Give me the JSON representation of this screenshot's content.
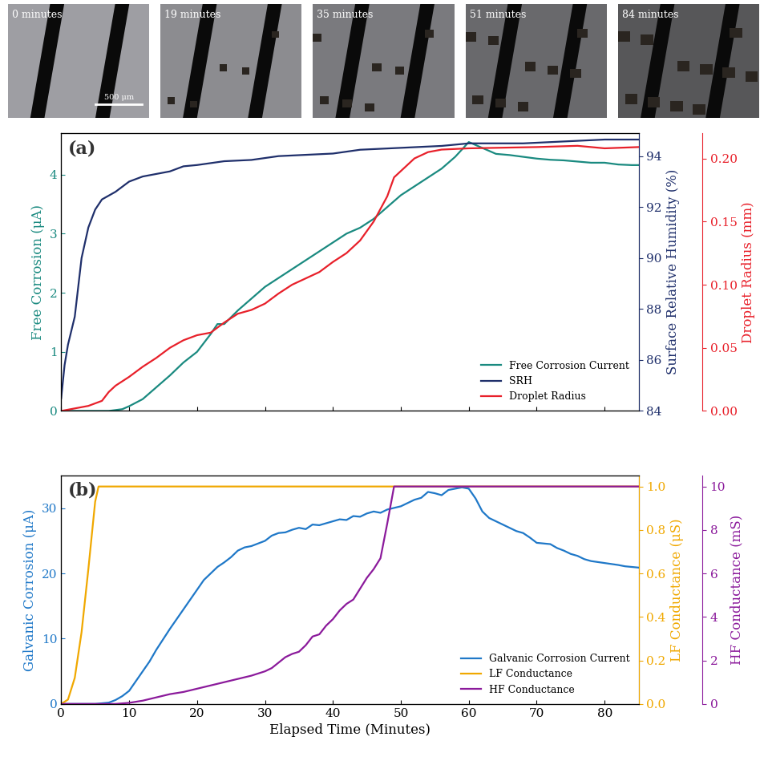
{
  "images": {
    "labels": [
      "0 minutes",
      "19 minutes",
      "35 minutes",
      "51 minutes",
      "84 minutes"
    ],
    "scale_bar": "500 μm"
  },
  "chart_data": [
    {
      "type": "line",
      "panel_label": "(a)",
      "legend": "lower right",
      "tick_labels": "y",
      "xlim": [
        0,
        85
      ],
      "xticks": [
        0,
        10,
        20,
        30,
        40,
        50,
        60,
        70,
        80
      ],
      "ylabel": "Free Corrosion (μA)",
      "ylim": [
        0,
        4.7
      ],
      "yticks": [
        0,
        1,
        2,
        3,
        4
      ],
      "y2label": "Surface Relative Humidity (%)",
      "y2lim": [
        84,
        94.9
      ],
      "y2ticks": [
        84,
        86,
        88,
        90,
        92,
        94
      ],
      "y3label": "Droplet Radius (mm)",
      "y3lim": [
        0,
        0.22
      ],
      "y3ticks": [
        {
          "value": 0,
          "label": "0.00"
        },
        {
          "value": 0.05,
          "label": "0.05"
        },
        {
          "value": 0.1,
          "label": "0.10"
        },
        {
          "value": 0.15,
          "label": "0.15"
        },
        {
          "value": 0.2,
          "label": "0.20"
        }
      ],
      "series": [
        {
          "name": "Free Corrosion Current",
          "color": "#1a8a80",
          "axis": "y",
          "x": [
            0,
            5,
            7,
            9,
            10,
            12,
            14,
            16,
            18,
            20,
            22,
            23,
            24,
            26,
            28,
            30,
            32,
            34,
            36,
            38,
            40,
            42,
            44,
            46,
            48,
            50,
            52,
            54,
            56,
            58,
            60,
            62,
            64,
            66,
            68,
            70,
            72,
            74,
            76,
            78,
            80,
            82,
            84,
            85
          ],
          "values": [
            0,
            0,
            0,
            0.03,
            0.08,
            0.2,
            0.4,
            0.6,
            0.82,
            1.0,
            1.3,
            1.47,
            1.47,
            1.7,
            1.9,
            2.1,
            2.25,
            2.4,
            2.55,
            2.7,
            2.85,
            3.0,
            3.1,
            3.25,
            3.45,
            3.65,
            3.8,
            3.95,
            4.1,
            4.3,
            4.55,
            4.45,
            4.35,
            4.33,
            4.3,
            4.27,
            4.25,
            4.24,
            4.22,
            4.2,
            4.2,
            4.17,
            4.16,
            4.16
          ]
        },
        {
          "name": "SRH",
          "color": "#1f2f6b",
          "axis": "y2",
          "x": [
            0,
            0.5,
            1,
            2,
            3,
            4,
            5,
            6,
            8,
            10,
            12,
            14,
            16,
            18,
            20,
            24,
            28,
            32,
            36,
            40,
            44,
            48,
            52,
            56,
            60,
            64,
            68,
            72,
            76,
            80,
            85
          ],
          "values": [
            84.5,
            85.8,
            86.6,
            87.7,
            90.0,
            91.2,
            91.9,
            92.3,
            92.6,
            93.0,
            93.2,
            93.3,
            93.4,
            93.6,
            93.65,
            93.8,
            93.85,
            94.0,
            94.05,
            94.1,
            94.25,
            94.3,
            94.35,
            94.4,
            94.5,
            94.5,
            94.5,
            94.55,
            94.6,
            94.65,
            94.65
          ]
        },
        {
          "name": "Droplet Radius",
          "color": "#e8202a",
          "axis": "y3",
          "x": [
            0,
            2,
            4,
            6,
            7,
            8,
            10,
            12,
            14,
            16,
            18,
            20,
            22,
            24,
            26,
            28,
            30,
            32,
            34,
            36,
            38,
            40,
            42,
            44,
            46,
            48,
            49,
            50,
            51,
            52,
            54,
            56,
            60,
            70,
            76,
            80,
            85
          ],
          "values": [
            0,
            0.002,
            0.004,
            0.008,
            0.015,
            0.02,
            0.027,
            0.035,
            0.042,
            0.05,
            0.056,
            0.06,
            0.062,
            0.07,
            0.077,
            0.08,
            0.085,
            0.093,
            0.1,
            0.105,
            0.11,
            0.118,
            0.125,
            0.135,
            0.15,
            0.17,
            0.185,
            0.19,
            0.195,
            0.2,
            0.205,
            0.207,
            0.208,
            0.209,
            0.21,
            0.208,
            0.209
          ]
        }
      ]
    },
    {
      "type": "line",
      "panel_label": "(b)",
      "legend": "lower right",
      "xlabel": "Elapsed Time (Minutes)",
      "xlim": [
        0,
        85
      ],
      "xticks": [
        0,
        10,
        20,
        30,
        40,
        50,
        60,
        70,
        80
      ],
      "ylabel": "Galvanic Corrosion (μA)",
      "ylim": [
        0,
        35
      ],
      "yticks": [
        0,
        10,
        20,
        30
      ],
      "y2label": "LF Conductance (μS)",
      "y2lim": [
        0,
        1.05
      ],
      "y2ticks": [
        {
          "value": 0,
          "label": "0.0"
        },
        {
          "value": 0.2,
          "label": "0.2"
        },
        {
          "value": 0.4,
          "label": "0.4"
        },
        {
          "value": 0.6,
          "label": "0.6"
        },
        {
          "value": 0.8,
          "label": "0.8"
        },
        {
          "value": 1.0,
          "label": "1.0"
        }
      ],
      "y3label": "HF Conductance (mS)",
      "y3lim": [
        0,
        10.5
      ],
      "y3ticks": [
        0,
        2,
        4,
        6,
        8,
        10
      ],
      "series": [
        {
          "name": "Galvanic Corrosion Current",
          "color": "#1f78c8",
          "axis": "y",
          "x": [
            0,
            5,
            7,
            8,
            9,
            10,
            11,
            12,
            13,
            14,
            16,
            18,
            20,
            21,
            22,
            23,
            24,
            25,
            26,
            27,
            28,
            30,
            31,
            32,
            33,
            34,
            35,
            36,
            37,
            38,
            40,
            41,
            42,
            43,
            44,
            45,
            46,
            47,
            48,
            50,
            52,
            53,
            54,
            55,
            56,
            57,
            58,
            59,
            60,
            61,
            62,
            63,
            64,
            66,
            67,
            68,
            69,
            70,
            72,
            73,
            74,
            75,
            76,
            77,
            78,
            80,
            82,
            83,
            85
          ],
          "values": [
            0,
            0,
            0.2,
            0.6,
            1.2,
            2.0,
            3.5,
            5.0,
            6.5,
            8.3,
            11.5,
            14.5,
            17.5,
            19.0,
            20.0,
            21.0,
            21.7,
            22.5,
            23.5,
            24.0,
            24.2,
            25.0,
            25.8,
            26.2,
            26.3,
            26.7,
            27.0,
            26.8,
            27.5,
            27.4,
            28.0,
            28.3,
            28.2,
            28.8,
            28.7,
            29.2,
            29.5,
            29.3,
            29.8,
            30.3,
            31.3,
            31.6,
            32.5,
            32.3,
            32.0,
            32.8,
            33.0,
            33.2,
            33.0,
            31.5,
            29.5,
            28.5,
            28.0,
            27.0,
            26.5,
            26.2,
            25.5,
            24.7,
            24.5,
            23.9,
            23.5,
            23.0,
            22.7,
            22.2,
            21.9,
            21.6,
            21.3,
            21.1,
            20.9
          ]
        },
        {
          "name": "LF Conductance",
          "color": "#f0a800",
          "axis": "y2",
          "x": [
            0,
            1,
            2,
            3,
            4,
            5,
            5.5,
            85
          ],
          "values": [
            0,
            0.02,
            0.12,
            0.33,
            0.62,
            0.93,
            1.0,
            1.0
          ]
        },
        {
          "name": "HF Conductance",
          "color": "#8b1a9b",
          "axis": "y3",
          "x": [
            0,
            8,
            10,
            12,
            14,
            16,
            18,
            20,
            22,
            24,
            26,
            28,
            30,
            31,
            32,
            33,
            34,
            35,
            36,
            37,
            38,
            39,
            40,
            41,
            42,
            43,
            44,
            45,
            46,
            47,
            48,
            49,
            85
          ],
          "values": [
            0,
            0,
            0.05,
            0.15,
            0.3,
            0.45,
            0.55,
            0.7,
            0.85,
            1.0,
            1.15,
            1.3,
            1.5,
            1.65,
            1.9,
            2.15,
            2.3,
            2.4,
            2.7,
            3.1,
            3.2,
            3.6,
            3.9,
            4.3,
            4.6,
            4.8,
            5.3,
            5.8,
            6.2,
            6.7,
            8.3,
            10.0,
            10.0
          ]
        }
      ]
    }
  ]
}
